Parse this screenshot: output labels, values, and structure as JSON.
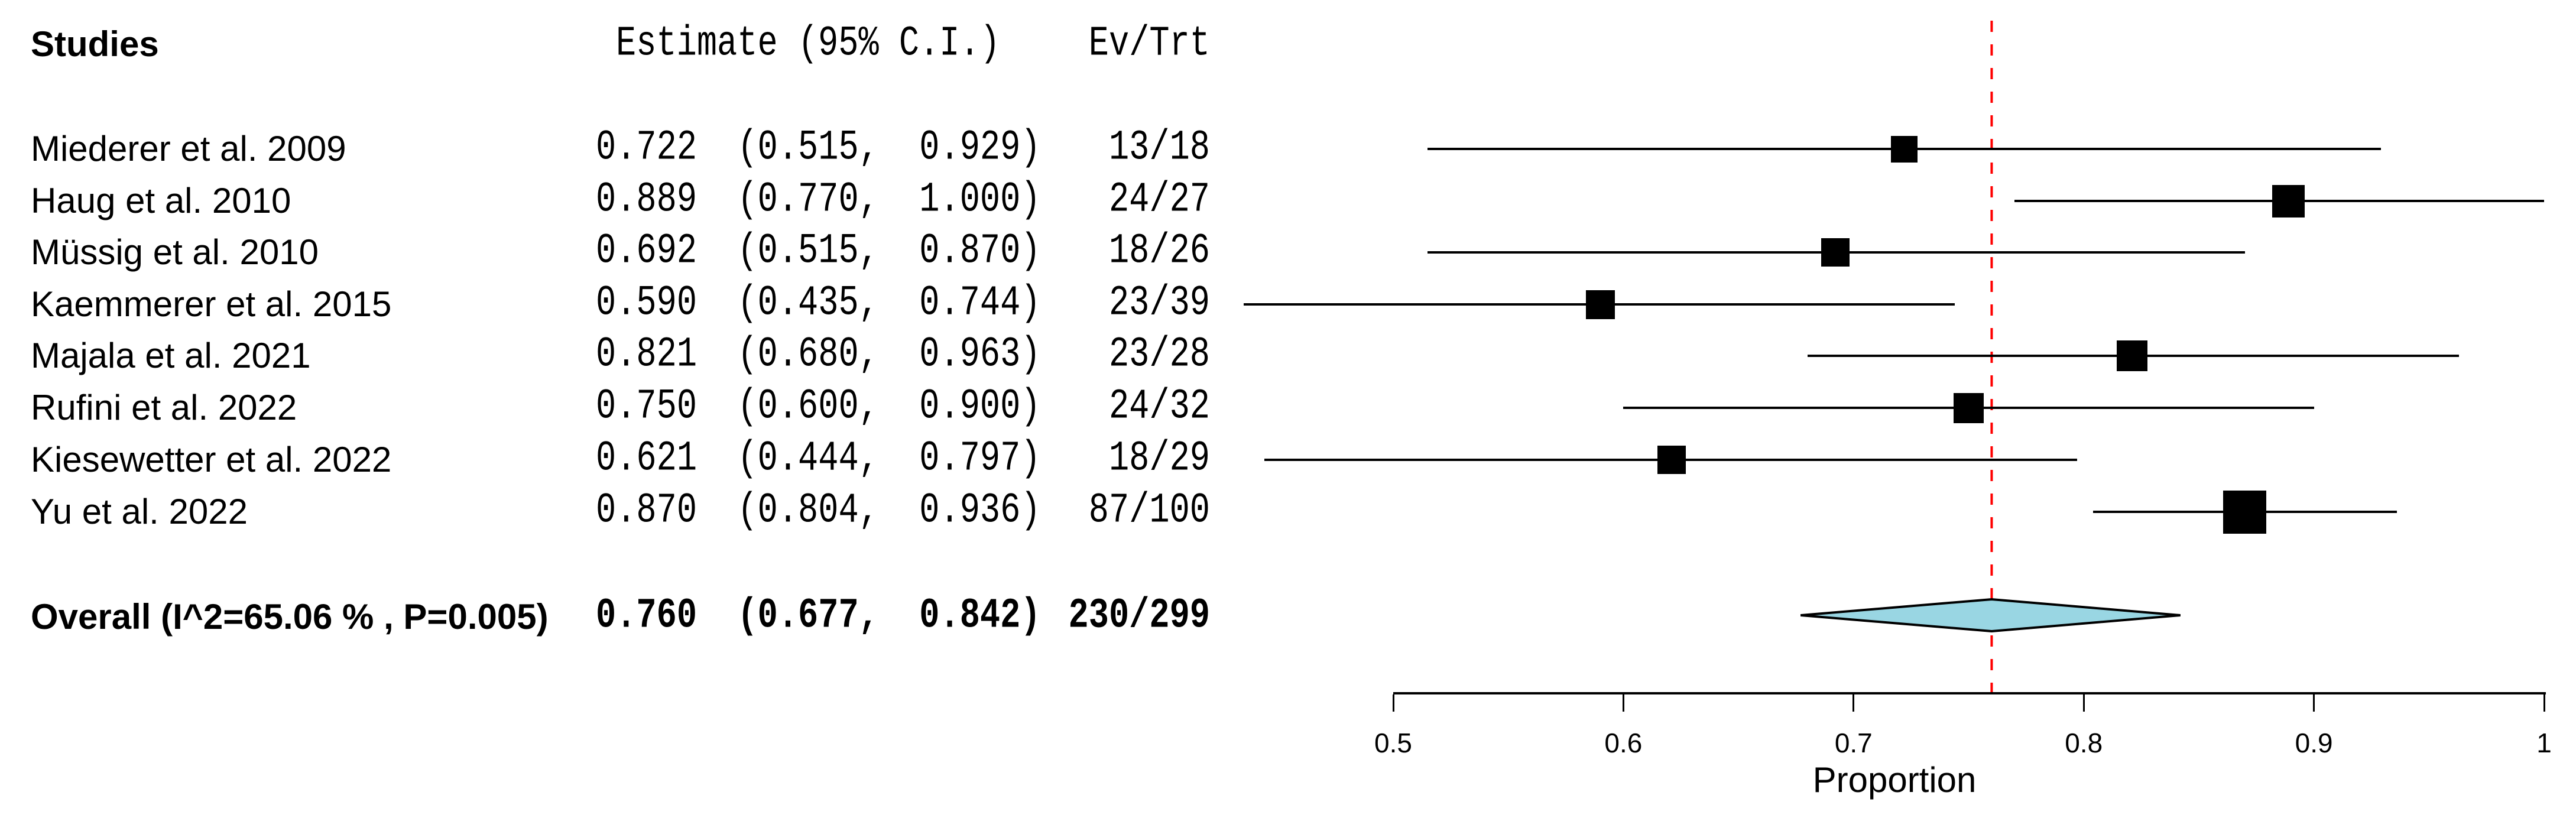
{
  "header": {
    "studies": "Studies",
    "estimate": "Estimate (95% C.I.)",
    "ev_trt": "Ev/Trt"
  },
  "studies": [
    {
      "name": "Miederer et al. 2009",
      "estimate": "0.722  (0.515,  0.929)",
      "ev_trt": "13/18",
      "value": 0.722,
      "ci_low": 0.515,
      "ci_high": 0.929,
      "marker_size": 45
    },
    {
      "name": "Haug et al. 2010",
      "estimate": "0.889  (0.770,  1.000)",
      "ev_trt": "24/27",
      "value": 0.889,
      "ci_low": 0.77,
      "ci_high": 1.0,
      "marker_size": 55
    },
    {
      "name": "Müssig et al. 2010",
      "estimate": "0.692  (0.515,  0.870)",
      "ev_trt": "18/26",
      "value": 0.692,
      "ci_low": 0.515,
      "ci_high": 0.87,
      "marker_size": 48
    },
    {
      "name": "Kaemmerer et al. 2015",
      "estimate": "0.590  (0.435,  0.744)",
      "ev_trt": "23/39",
      "value": 0.59,
      "ci_low": 0.435,
      "ci_high": 0.744,
      "marker_size": 49
    },
    {
      "name": "Majala et al. 2021",
      "estimate": "0.821  (0.680,  0.963)",
      "ev_trt": "23/28",
      "value": 0.821,
      "ci_low": 0.68,
      "ci_high": 0.963,
      "marker_size": 52
    },
    {
      "name": "Rufini et al. 2022",
      "estimate": "0.750  (0.600,  0.900)",
      "ev_trt": "24/32",
      "value": 0.75,
      "ci_low": 0.6,
      "ci_high": 0.9,
      "marker_size": 51
    },
    {
      "name": "Kiesewetter et al. 2022",
      "estimate": "0.621  (0.444,  0.797)",
      "ev_trt": "18/29",
      "value": 0.621,
      "ci_low": 0.444,
      "ci_high": 0.797,
      "marker_size": 48
    },
    {
      "name": "Yu et al. 2022",
      "estimate": "0.870  (0.804,  0.936)",
      "ev_trt": "87/100",
      "value": 0.87,
      "ci_low": 0.804,
      "ci_high": 0.936,
      "marker_size": 73
    }
  ],
  "overall": {
    "name": "Overall (I^2=65.06 % , P=0.005)",
    "estimate": "0.760  (0.677,  0.842)",
    "ev_trt": "230/299",
    "value": 0.76,
    "ci_low": 0.677,
    "ci_high": 0.842
  },
  "axis": {
    "tick_labels": [
      "0.5",
      "0.6",
      "0.7",
      "0.8",
      "0.9",
      "1"
    ],
    "tick_values": [
      0.5,
      0.6,
      0.7,
      0.8,
      0.9,
      1.0
    ],
    "label": "Proportion"
  },
  "reference_line_value": 0.76,
  "colors": {
    "diamond_fill": "#99D6E3",
    "diamond_stroke": "#000000",
    "reference_line": "#FF0000",
    "marker": "#000000",
    "text": "#000000"
  },
  "chart_data": {
    "type": "forest",
    "title": "",
    "xlabel": "Proportion",
    "xlim": [
      0.5,
      1.0
    ],
    "x_ticks": [
      0.5,
      0.6,
      0.7,
      0.8,
      0.9,
      1.0
    ],
    "reference_line": 0.76,
    "columns": [
      "Studies",
      "Estimate (95% C.I.)",
      "Ev/Trt"
    ],
    "studies": [
      {
        "study": "Miederer et al. 2009",
        "estimate": 0.722,
        "ci_low": 0.515,
        "ci_high": 0.929,
        "events": 13,
        "treated": 18
      },
      {
        "study": "Haug et al. 2010",
        "estimate": 0.889,
        "ci_low": 0.77,
        "ci_high": 1.0,
        "events": 24,
        "treated": 27
      },
      {
        "study": "Müssig et al. 2010",
        "estimate": 0.692,
        "ci_low": 0.515,
        "ci_high": 0.87,
        "events": 18,
        "treated": 26
      },
      {
        "study": "Kaemmerer et al. 2015",
        "estimate": 0.59,
        "ci_low": 0.435,
        "ci_high": 0.744,
        "events": 23,
        "treated": 39
      },
      {
        "study": "Majala et al. 2021",
        "estimate": 0.821,
        "ci_low": 0.68,
        "ci_high": 0.963,
        "events": 23,
        "treated": 28
      },
      {
        "study": "Rufini et al. 2022",
        "estimate": 0.75,
        "ci_low": 0.6,
        "ci_high": 0.9,
        "events": 24,
        "treated": 32
      },
      {
        "study": "Kiesewetter et al. 2022",
        "estimate": 0.621,
        "ci_low": 0.444,
        "ci_high": 0.797,
        "events": 18,
        "treated": 29
      },
      {
        "study": "Yu et al. 2022",
        "estimate": 0.87,
        "ci_low": 0.804,
        "ci_high": 0.936,
        "events": 87,
        "treated": 100
      }
    ],
    "overall": {
      "label": "Overall (I^2=65.06 % , P=0.005)",
      "estimate": 0.76,
      "ci_low": 0.677,
      "ci_high": 0.842,
      "events": 230,
      "treated": 299,
      "i_squared_pct": 65.06,
      "p_value": 0.005
    }
  }
}
